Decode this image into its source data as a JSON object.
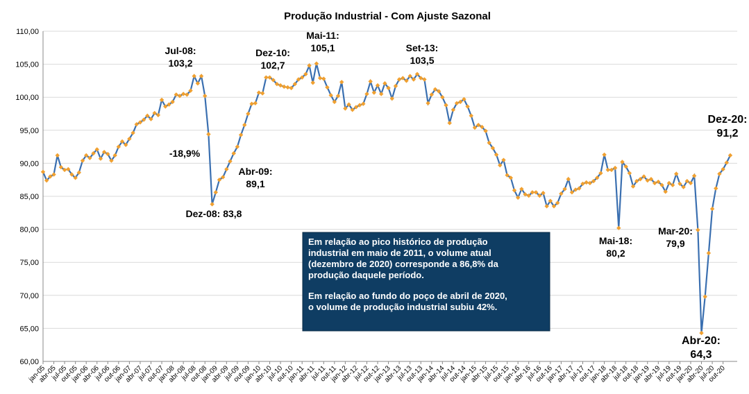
{
  "chart_data": {
    "type": "line",
    "title": "Produção Industrial - Com Ajuste Sazonal",
    "categories": [
      "jan-05",
      null,
      null,
      "abr-05",
      null,
      null,
      "jul-05",
      null,
      null,
      "out-05",
      null,
      null,
      "jan-06",
      null,
      null,
      "abr-06",
      null,
      null,
      "jul-06",
      null,
      null,
      "out-06",
      null,
      null,
      "jan-07",
      null,
      null,
      "abr-07",
      null,
      null,
      "jul-07",
      null,
      null,
      "out-07",
      null,
      null,
      "jan-08",
      null,
      null,
      "abr-08",
      null,
      null,
      "jul-08",
      null,
      null,
      "out-08",
      null,
      null,
      "jan-09",
      null,
      null,
      "abr-09",
      null,
      null,
      "jul-09",
      null,
      null,
      "out-09",
      null,
      null,
      "jan-10",
      null,
      null,
      "abr-10",
      null,
      null,
      "jul-10",
      null,
      null,
      "out-10",
      null,
      null,
      "jan-11",
      null,
      null,
      "abr-11",
      null,
      null,
      "jul-11",
      null,
      null,
      "out-11",
      null,
      null,
      "jan-12",
      null,
      null,
      "abr-12",
      null,
      null,
      "jul-12",
      null,
      null,
      "out-12",
      null,
      null,
      "jan-13",
      null,
      null,
      "abr-13",
      null,
      null,
      "jul-13",
      null,
      null,
      "out-13",
      null,
      null,
      "jan-14",
      null,
      null,
      "abr-14",
      null,
      null,
      "jul-14",
      null,
      null,
      "out-14",
      null,
      null,
      "jan-15",
      null,
      null,
      "abr-15",
      null,
      null,
      "jul-15",
      null,
      null,
      "out-15",
      null,
      null,
      "jan-16",
      null,
      null,
      "abr-16",
      null,
      null,
      "jul-16",
      null,
      null,
      "out-16",
      null,
      null,
      "jan-17",
      null,
      null,
      "abr-17",
      null,
      null,
      "jul-17",
      null,
      null,
      "out-17",
      null,
      null,
      "jan-18",
      null,
      null,
      "abr-18",
      null,
      null,
      "jul-18",
      null,
      null,
      "out-18",
      null,
      null,
      "jan-19",
      null,
      null,
      "abr-19",
      null,
      null,
      "jul-19",
      null,
      null,
      "out-19",
      null,
      null,
      "jan-20",
      null,
      null,
      "abr-20",
      null,
      null,
      "jul-20",
      null,
      null,
      "out-20",
      null,
      null
    ],
    "series": [
      {
        "color": "#3a6fb0",
        "marker_color": "#f0a030",
        "values": [
          88.7,
          87.4,
          88.0,
          88.3,
          91.2,
          89.4,
          89.0,
          89.1,
          88.3,
          87.8,
          88.6,
          90.4,
          91.2,
          90.8,
          91.5,
          92.1,
          90.7,
          91.7,
          91.4,
          90.4,
          91.2,
          92.5,
          93.3,
          92.8,
          93.7,
          94.6,
          95.9,
          96.2,
          96.6,
          97.2,
          96.7,
          97.6,
          97.3,
          99.6,
          98.6,
          98.9,
          99.3,
          100.4,
          100.2,
          100.5,
          100.4,
          101.0,
          103.2,
          102.1,
          103.2,
          100.2,
          94.4,
          83.8,
          85.6,
          87.5,
          87.9,
          89.1,
          90.3,
          91.5,
          92.5,
          94.3,
          95.8,
          97.5,
          99.0,
          99.1,
          100.7,
          100.6,
          103.0,
          103.0,
          102.6,
          102.0,
          101.8,
          101.6,
          101.5,
          101.4,
          102.0,
          102.7,
          103.0,
          103.5,
          104.8,
          102.2,
          105.1,
          102.9,
          102.8,
          101.5,
          100.3,
          99.3,
          100.2,
          102.3,
          98.3,
          98.9,
          98.1,
          98.5,
          98.8,
          99.0,
          100.5,
          102.4,
          100.7,
          101.8,
          100.5,
          102.1,
          101.4,
          99.8,
          101.7,
          102.7,
          102.9,
          102.5,
          103.2,
          102.7,
          103.5,
          102.9,
          102.7,
          99.1,
          100.4,
          101.2,
          100.9,
          100.0,
          98.8,
          96.1,
          98.1,
          99.1,
          99.3,
          99.7,
          98.6,
          97.2,
          95.4,
          95.8,
          95.5,
          94.9,
          93.1,
          92.3,
          91.3,
          89.7,
          90.5,
          88.2,
          87.8,
          85.9,
          84.8,
          86.1,
          85.3,
          85.1,
          85.6,
          85.6,
          85.1,
          85.5,
          83.5,
          84.3,
          83.5,
          84.0,
          85.4,
          86.1,
          87.6,
          85.6,
          86.0,
          86.2,
          86.9,
          87.1,
          87.0,
          87.3,
          87.8,
          88.5,
          91.3,
          89.0,
          89.0,
          89.3,
          80.2,
          90.2,
          89.5,
          88.5,
          86.5,
          87.3,
          87.6,
          88.0,
          87.4,
          87.6,
          87.0,
          87.2,
          86.7,
          85.7,
          87.0,
          86.7,
          88.4,
          86.9,
          86.4,
          87.3,
          87.0,
          88.1,
          79.9,
          64.3,
          69.8,
          76.4,
          83.1,
          86.2,
          88.4,
          89.1,
          90.1,
          91.2
        ]
      }
    ],
    "ylim": [
      60,
      110
    ],
    "yticks": [
      {
        "value": 60,
        "label": "60,00"
      },
      {
        "value": 65,
        "label": "65,00"
      },
      {
        "value": 70,
        "label": "70,00"
      },
      {
        "value": 75,
        "label": "75,00"
      },
      {
        "value": 80,
        "label": "80,00"
      },
      {
        "value": 85,
        "label": "85,00"
      },
      {
        "value": 90,
        "label": "90,00"
      },
      {
        "value": 95,
        "label": "95,00"
      },
      {
        "value": 100,
        "label": "100,00"
      },
      {
        "value": 105,
        "label": "105,00"
      },
      {
        "value": 110,
        "label": "110,00"
      }
    ],
    "grid": true,
    "annotations": [
      {
        "lines": [
          "Jul-08:",
          "103,2"
        ]
      },
      {
        "lines": [
          "Dez-08: 83,8"
        ]
      },
      {
        "lines": [
          "Abr-09:",
          "89,1"
        ]
      },
      {
        "lines": [
          "Dez-10:",
          "102,7"
        ]
      },
      {
        "lines": [
          "Mai-11:",
          "105,1"
        ]
      },
      {
        "lines": [
          "Set-13:",
          "103,5"
        ]
      },
      {
        "lines": [
          "Mai-18:",
          "80,2"
        ]
      },
      {
        "lines": [
          "Mar-20:",
          "79,9"
        ]
      },
      {
        "lines": [
          "Abr-20:",
          "64,3"
        ]
      },
      {
        "lines": [
          "Dez-20:",
          "91,2"
        ]
      },
      {
        "lines": [
          "-18,9%"
        ],
        "color": "#ff0000"
      }
    ],
    "text_box": {
      "paragraphs": [
        [
          "Em relação ao pico histórico de produção",
          "industrial em maio de 2011, o volume atual",
          "(dezembro de 2020) corresponde a 86,8% da",
          "produção daquele período."
        ],
        [
          "Em relação ao fundo do poço de abril de 2020,",
          "o volume de produção industrial subiu 42%."
        ]
      ]
    }
  }
}
